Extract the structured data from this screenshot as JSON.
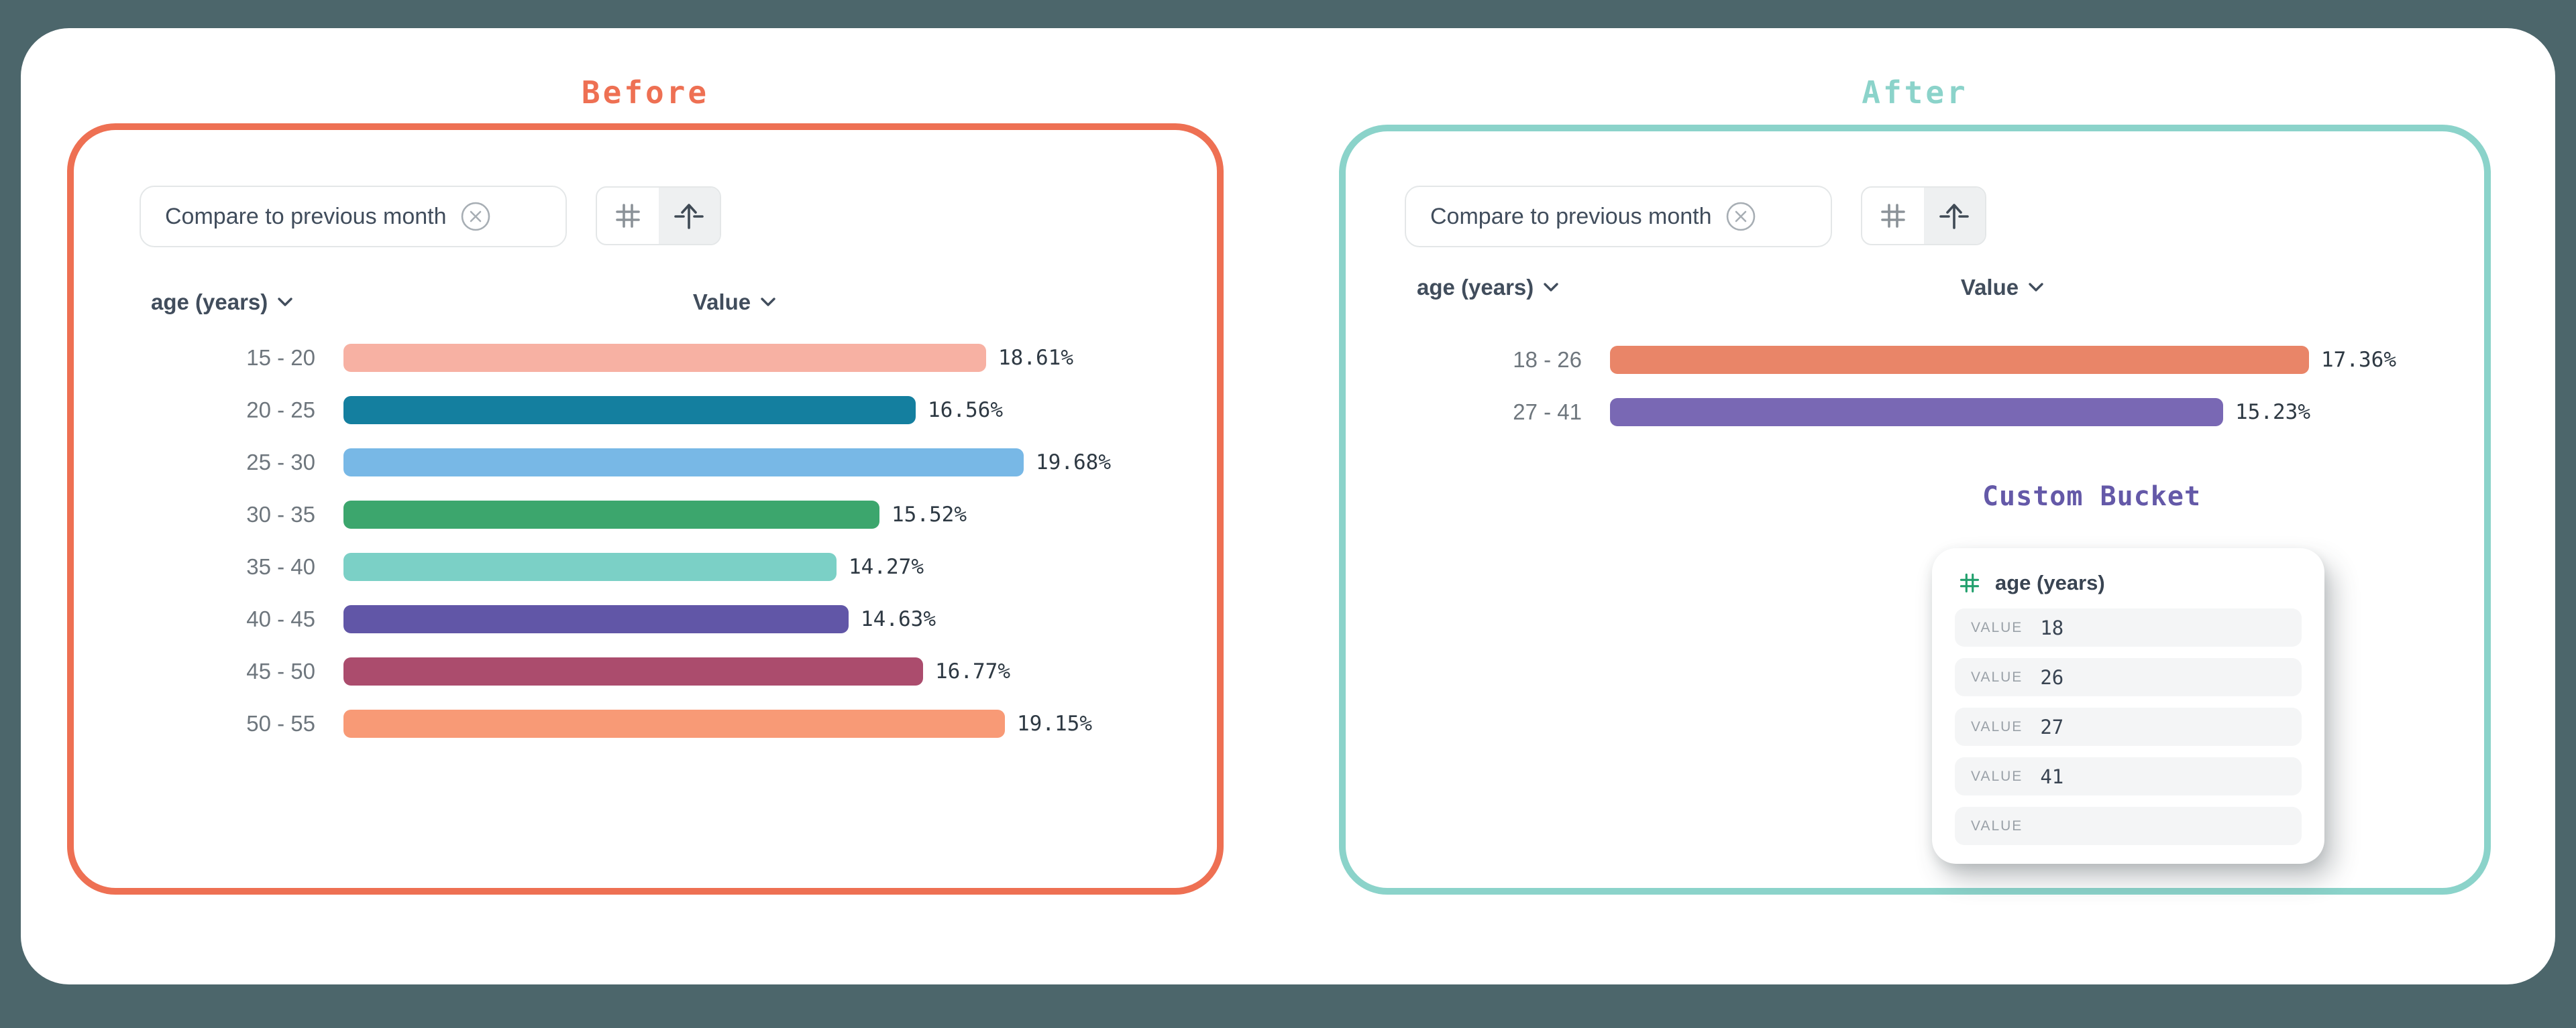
{
  "page": {
    "background_color": "#4c666b",
    "card_color": "#ffffff"
  },
  "before": {
    "title": "Before",
    "accent_color": "#ee7053",
    "filter_chip": {
      "label": "Compare to previous month",
      "close_icon": "close-circle-icon"
    },
    "toolbar": {
      "buttons": [
        {
          "icon": "hash-grid-icon",
          "selected": false
        },
        {
          "icon": "arrow-up-bar-icon",
          "selected": true
        }
      ]
    },
    "columns": {
      "dimension": "age (years)",
      "metric": "Value"
    }
  },
  "after": {
    "title": "After",
    "accent_color": "#8bd3ca",
    "filter_chip": {
      "label": "Compare to previous month",
      "close_icon": "close-circle-icon"
    },
    "toolbar": {
      "buttons": [
        {
          "icon": "hash-grid-icon",
          "selected": false
        },
        {
          "icon": "arrow-up-bar-icon",
          "selected": true
        }
      ]
    },
    "columns": {
      "dimension": "age (years)",
      "metric": "Value"
    },
    "custom_bucket": {
      "title": "Custom Bucket",
      "title_color": "#6459a8",
      "field": {
        "icon": "hash-grid-icon",
        "icon_color": "#22a06d",
        "label": "age (years)"
      },
      "rows": [
        {
          "label": "VALUE",
          "value": "18"
        },
        {
          "label": "VALUE",
          "value": "26"
        },
        {
          "label": "VALUE",
          "value": "27"
        },
        {
          "label": "VALUE",
          "value": "41"
        },
        {
          "label": "VALUE",
          "value": ""
        }
      ]
    }
  },
  "chart_data": [
    {
      "type": "bar",
      "orientation": "horizontal",
      "title": "Before",
      "xlabel": "Value",
      "ylabel": "age (years)",
      "unit": "%",
      "xlim": [
        0,
        20
      ],
      "categories": [
        "15 - 20",
        "20 - 25",
        "25 - 30",
        "30 - 35",
        "35 - 40",
        "40 - 45",
        "45 - 50",
        "50 - 55"
      ],
      "values": [
        18.61,
        16.56,
        19.68,
        15.52,
        14.27,
        14.63,
        16.77,
        19.15
      ],
      "value_labels": [
        "18.61%",
        "16.56%",
        "19.68%",
        "15.52%",
        "14.27%",
        "14.63%",
        "16.77%",
        "19.15%"
      ],
      "colors": [
        "#f7b1a3",
        "#147f9f",
        "#78b8e6",
        "#3ca66d",
        "#7bd0c6",
        "#6156a7",
        "#ab4c6d",
        "#f89a76"
      ]
    },
    {
      "type": "bar",
      "orientation": "horizontal",
      "title": "After",
      "xlabel": "Value",
      "ylabel": "age (years)",
      "unit": "%",
      "xlim": [
        0,
        18
      ],
      "categories": [
        "18 - 26",
        "27 - 41"
      ],
      "values": [
        17.36,
        15.23
      ],
      "value_labels": [
        "17.36%",
        "15.23%"
      ],
      "colors": [
        "#e98568",
        "#7968b4"
      ]
    }
  ]
}
